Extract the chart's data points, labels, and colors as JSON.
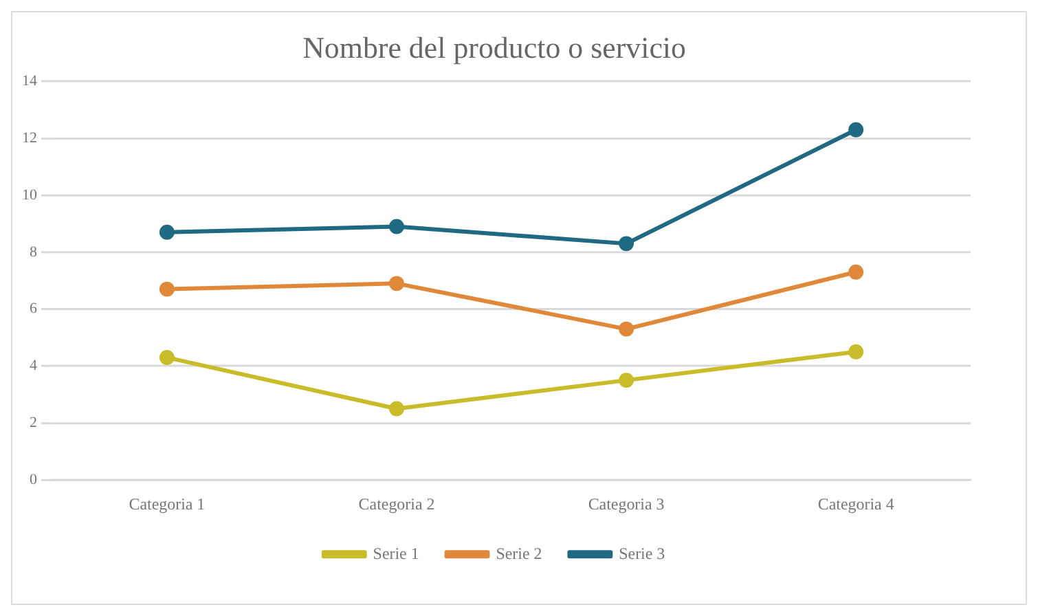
{
  "chart_data": {
    "type": "line",
    "title": "Nombre del producto o servicio",
    "categories": [
      "Categoria 1",
      "Categoria 2",
      "Categoria 3",
      "Categoria 4"
    ],
    "series": [
      {
        "name": "Serie 1",
        "color": "#c9bb2a",
        "values": [
          4.3,
          2.5,
          3.5,
          4.5
        ]
      },
      {
        "name": "Serie 2",
        "color": "#e0883a",
        "values": [
          6.7,
          6.9,
          5.3,
          7.3
        ]
      },
      {
        "name": "Serie 3",
        "color": "#1f6a82",
        "values": [
          8.7,
          8.9,
          8.3,
          12.3
        ]
      }
    ],
    "ylim": [
      0,
      14
    ],
    "yticks": [
      0,
      2,
      4,
      6,
      8,
      10,
      12,
      14
    ],
    "grid": "y",
    "legend": "bottom",
    "marker": "circle",
    "line_style": "solid"
  }
}
